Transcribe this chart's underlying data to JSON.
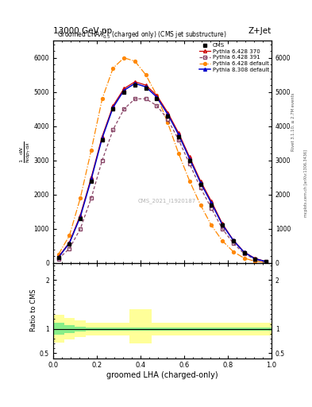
{
  "title_top": "13000 GeV pp",
  "title_right": "Z+Jet",
  "plot_title": "Groomed LHA$\\lambda^{1}_{0.5}$ (charged only) (CMS jet substructure)",
  "xlabel": "groomed LHA (charged-only)",
  "ylabel_ratio": "Ratio to CMS",
  "watermark": "CMS_2021_I1920187",
  "right_label": "mcplots.cern.ch [arXiv:1306.3436]",
  "right_label2": "Rivet 3.1.10, ≥ 2.7M events",
  "x": [
    0.025,
    0.075,
    0.125,
    0.175,
    0.225,
    0.275,
    0.325,
    0.375,
    0.425,
    0.475,
    0.525,
    0.575,
    0.625,
    0.675,
    0.725,
    0.775,
    0.825,
    0.875,
    0.925,
    0.975
  ],
  "cms_y": [
    0.15,
    0.55,
    1.3,
    2.4,
    3.6,
    4.5,
    5.0,
    5.2,
    5.1,
    4.8,
    4.3,
    3.7,
    3.0,
    2.3,
    1.7,
    1.1,
    0.65,
    0.3,
    0.12,
    0.04
  ],
  "py6_370_y": [
    0.18,
    0.6,
    1.4,
    2.5,
    3.7,
    4.6,
    5.1,
    5.3,
    5.2,
    4.9,
    4.4,
    3.8,
    3.1,
    2.4,
    1.8,
    1.15,
    0.67,
    0.32,
    0.13,
    0.04
  ],
  "py6_391_y": [
    0.12,
    0.42,
    1.0,
    1.9,
    3.0,
    3.9,
    4.5,
    4.8,
    4.8,
    4.6,
    4.2,
    3.6,
    2.9,
    2.2,
    1.6,
    1.0,
    0.58,
    0.27,
    0.1,
    0.03
  ],
  "py6_def_y": [
    0.25,
    0.8,
    1.9,
    3.3,
    4.8,
    5.7,
    6.0,
    5.9,
    5.5,
    4.9,
    4.1,
    3.2,
    2.4,
    1.7,
    1.1,
    0.65,
    0.33,
    0.14,
    0.05,
    0.01
  ],
  "py8_def_y": [
    0.16,
    0.58,
    1.35,
    2.45,
    3.65,
    4.55,
    5.05,
    5.25,
    5.15,
    4.85,
    4.35,
    3.75,
    3.05,
    2.35,
    1.75,
    1.12,
    0.66,
    0.31,
    0.12,
    0.04
  ],
  "ratio_x_edges": [
    0.0,
    0.05,
    0.1,
    0.15,
    0.2,
    0.25,
    0.3,
    0.35,
    0.4,
    0.45,
    0.5,
    0.55,
    0.6,
    0.65,
    0.7,
    0.75,
    0.8,
    0.85,
    0.9,
    0.95,
    1.0
  ],
  "green_band_lo": [
    0.88,
    0.92,
    0.95,
    0.97,
    0.97,
    0.97,
    0.97,
    0.97,
    0.97,
    0.97,
    0.97,
    0.97,
    0.97,
    0.97,
    0.97,
    0.97,
    0.97,
    0.97,
    0.97,
    0.97
  ],
  "green_band_hi": [
    1.12,
    1.08,
    1.05,
    1.03,
    1.03,
    1.03,
    1.03,
    1.03,
    1.03,
    1.03,
    1.03,
    1.03,
    1.03,
    1.03,
    1.03,
    1.03,
    1.03,
    1.03,
    1.03,
    1.03
  ],
  "yellow_band_lo": [
    0.72,
    0.78,
    0.83,
    0.87,
    0.87,
    0.87,
    0.87,
    0.7,
    0.7,
    0.87,
    0.87,
    0.87,
    0.87,
    0.87,
    0.87,
    0.87,
    0.87,
    0.87,
    0.87,
    0.87
  ],
  "yellow_band_hi": [
    1.28,
    1.22,
    1.17,
    1.13,
    1.13,
    1.13,
    1.13,
    1.4,
    1.4,
    1.13,
    1.13,
    1.13,
    1.13,
    1.13,
    1.13,
    1.13,
    1.13,
    1.13,
    1.13,
    1.13
  ],
  "color_cms": "#000000",
  "color_py6_370": "#cc0000",
  "color_py6_391": "#884466",
  "color_py6_def": "#ff8800",
  "color_py8_def": "#0000cc",
  "yticks_main": [
    0,
    1000,
    2000,
    3000,
    4000,
    5000,
    6000
  ],
  "ylim_main": [
    0,
    6500
  ],
  "ylim_ratio": [
    0.4,
    2.35
  ],
  "scale": 1000
}
